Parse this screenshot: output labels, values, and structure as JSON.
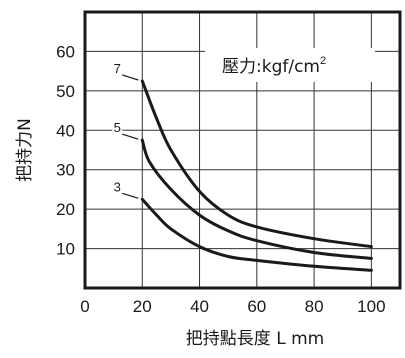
{
  "chart_data": {
    "type": "line",
    "xlabel": "把持點長度 L mm",
    "ylabel": "把持力N",
    "annotation": "壓力:kgf/cm",
    "annotation_sup": "2",
    "xlim": [
      0,
      110
    ],
    "ylim": [
      0,
      70
    ],
    "x_ticks": [
      0,
      20,
      40,
      60,
      80,
      100
    ],
    "y_ticks": [
      10,
      20,
      30,
      40,
      50,
      60
    ],
    "x_tick_labels": [
      "0",
      "20",
      "40",
      "60",
      "80",
      "100"
    ],
    "y_tick_labels": [
      "10",
      "20",
      "30",
      "40",
      "50",
      "60"
    ],
    "grid": true,
    "series": [
      {
        "name": "7",
        "points": [
          [
            20,
            52.5
          ],
          [
            25,
            43
          ],
          [
            30,
            35
          ],
          [
            40,
            24.5
          ],
          [
            50,
            18.5
          ],
          [
            60,
            15.5
          ],
          [
            80,
            12.5
          ],
          [
            100,
            10.5
          ]
        ]
      },
      {
        "name": "5",
        "points": [
          [
            20,
            37.5
          ],
          [
            22.5,
            32
          ],
          [
            30,
            25
          ],
          [
            40,
            18.5
          ],
          [
            50,
            14.5
          ],
          [
            60,
            12
          ],
          [
            80,
            9
          ],
          [
            100,
            7.5
          ]
        ]
      },
      {
        "name": "3",
        "points": [
          [
            20,
            22.5
          ],
          [
            25,
            18.5
          ],
          [
            30,
            15
          ],
          [
            40,
            10.5
          ],
          [
            50,
            8
          ],
          [
            60,
            7
          ],
          [
            80,
            5.5
          ],
          [
            100,
            4.5
          ]
        ]
      }
    ]
  }
}
